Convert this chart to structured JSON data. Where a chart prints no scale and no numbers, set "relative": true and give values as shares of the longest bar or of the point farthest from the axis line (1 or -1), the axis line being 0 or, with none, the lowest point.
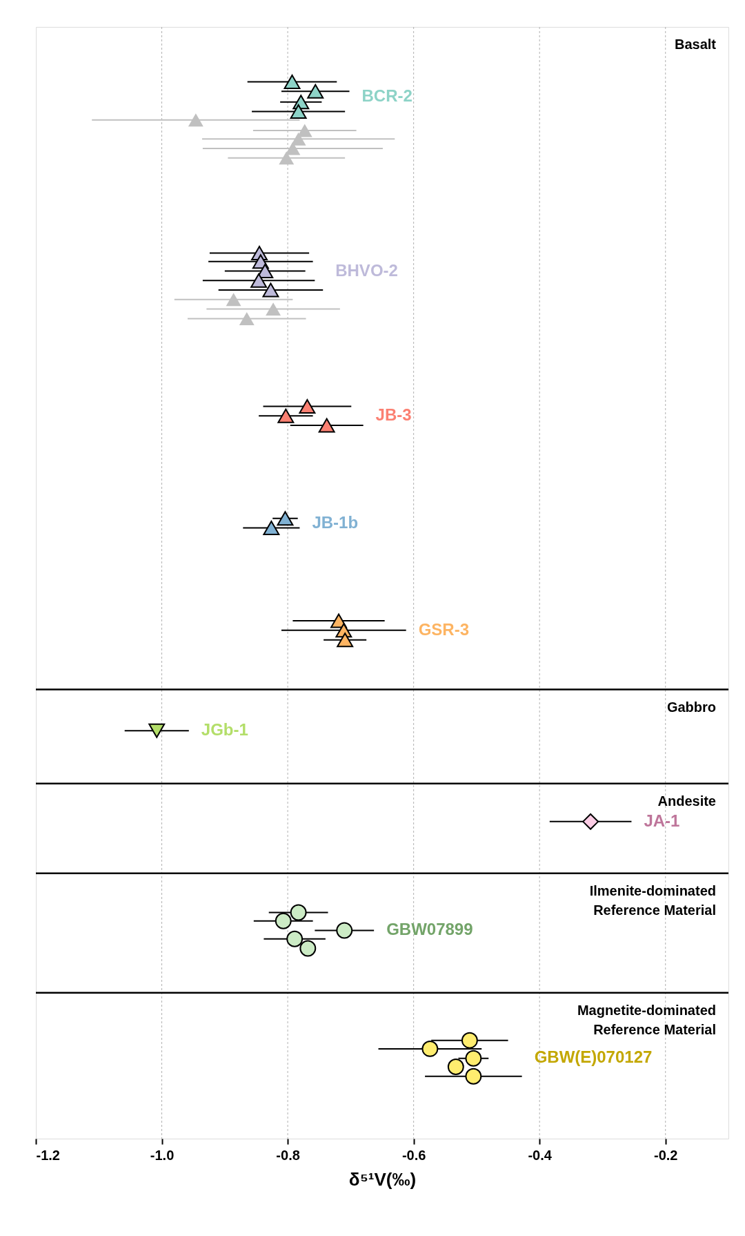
{
  "chart_data": {
    "type": "scatter",
    "relative": true,
    "marker": "triangle",
    "grid": "x",
    "tick_labels": "x",
    "xlim": [
      -1.2,
      -0.1
    ],
    "xlabel": "δ⁵¹V(‰)",
    "xticks": [
      -1.2,
      {
        "value": -1.0,
        "label": "-1.0"
      },
      -0.8,
      -0.6,
      -0.4,
      -0.2
    ],
    "annotations": [
      "Basalt",
      "Gabbro",
      "Andesite",
      "Ilmenite-dominated\nReference Material",
      "Magnetite-dominated\nReference Material"
    ],
    "ref_lines": [
      {
        "axis": "y",
        "value": 0.425,
        "color": "#000000"
      },
      {
        "axis": "y",
        "value": 0.336,
        "color": "#000000"
      },
      {
        "axis": "y",
        "value": 0.251,
        "color": "#000000"
      },
      {
        "axis": "y",
        "value": 0.138,
        "color": "#000000"
      }
    ],
    "series": [
      {
        "color": "#c0c0c0",
        "x": [
          -0.946,
          -0.773,
          -0.783,
          -0.792,
          -0.802
        ],
        "values": [
          0.964,
          0.954,
          0.946,
          0.937,
          0.928
        ],
        "xerrors": [
          0.165,
          0.082,
          0.153,
          0.143,
          0.093
        ]
      },
      {
        "name": "BCR-2",
        "color": "#8dd3c7",
        "x": [
          -0.793,
          -0.756,
          -0.779,
          -0.783
        ],
        "values": [
          1.0,
          0.991,
          0.981,
          0.972
        ],
        "xerrors": [
          0.071,
          0.054,
          0.033,
          0.074
        ]
      },
      {
        "color": "#c0c0c0",
        "x": [
          -0.886,
          -0.823,
          -0.865
        ],
        "values": [
          0.794,
          0.785,
          0.776
        ],
        "xerrors": [
          0.094,
          0.106,
          0.094
        ]
      },
      {
        "name": "BHVO-2",
        "color": "#bebada",
        "x": [
          -0.845,
          -0.843,
          -0.836,
          -0.846,
          -0.827
        ],
        "values": [
          0.838,
          0.83,
          0.821,
          0.812,
          0.803
        ],
        "xerrors": [
          0.079,
          0.083,
          0.064,
          0.089,
          0.083
        ]
      },
      {
        "name": "JB-3",
        "color": "#fb8072",
        "x": [
          -0.769,
          -0.803,
          -0.738
        ],
        "values": [
          0.693,
          0.684,
          0.675
        ],
        "xerrors": [
          0.07,
          0.043,
          0.058
        ]
      },
      {
        "name": "JB-1b",
        "color": "#80b1d3",
        "x": [
          -0.804,
          -0.826
        ],
        "values": [
          0.587,
          0.578
        ],
        "xerrors": [
          0.02,
          0.045
        ]
      },
      {
        "name": "GSR-3",
        "color": "#fdb462",
        "x": [
          -0.719,
          -0.711,
          -0.709
        ],
        "values": [
          0.49,
          0.481,
          0.472
        ],
        "xerrors": [
          0.073,
          0.099,
          0.034
        ]
      },
      {
        "name": "JGb-1",
        "color": "#b3de69",
        "marker": "triangle-down",
        "x": [
          -1.008
        ],
        "values": [
          0.386
        ],
        "xerrors": [
          0.051
        ]
      },
      {
        "name": "JA-1",
        "color": "#fccde5",
        "marker": "diamond",
        "x": [
          -0.319
        ],
        "values": [
          0.3
        ],
        "xerrors": [
          0.065
        ]
      },
      {
        "name": "GBW07899",
        "color": "#ccebc5",
        "marker": "circle",
        "x": [
          -0.783,
          -0.807,
          -0.71,
          -0.789,
          -0.768
        ],
        "values": [
          0.214,
          0.206,
          0.197,
          0.189,
          0.18
        ],
        "xerrors": [
          0.047,
          0.047,
          0.047,
          0.049,
          null
        ]
      },
      {
        "name": "GBW(E)070127",
        "color": "#ffed6f",
        "marker": "circle",
        "x": [
          -0.511,
          -0.574,
          -0.505,
          -0.533,
          -0.505
        ],
        "values": [
          0.093,
          0.085,
          0.076,
          0.068,
          0.059
        ],
        "xerrors": [
          0.061,
          0.082,
          0.024,
          null,
          0.077
        ]
      }
    ]
  }
}
